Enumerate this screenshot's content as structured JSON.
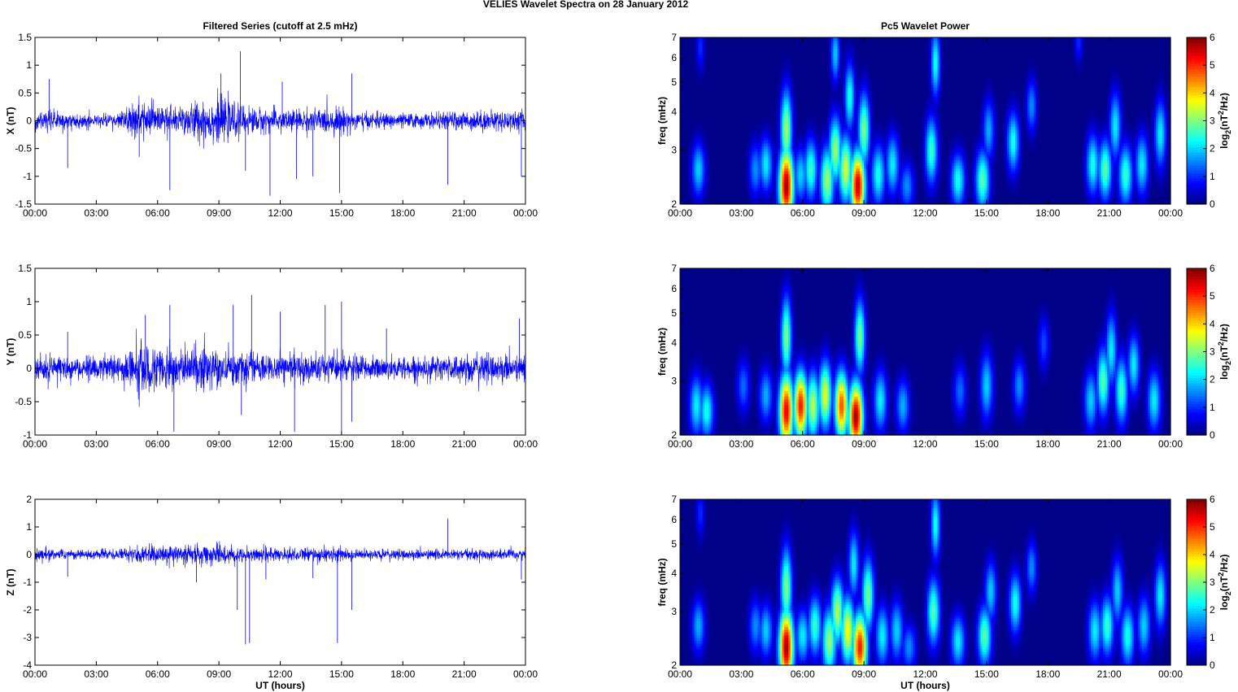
{
  "figure_title": "VELIES Wavelet Spectra on 28 January   2012",
  "colors": {
    "trace": "#0000ff",
    "axes": "#000000",
    "background": "#ffffff"
  },
  "chart_data": [
    {
      "type": "line",
      "title": "Filtered Series (cutoff at 2.5 mHz)",
      "xlabel": "",
      "ylabel": "X (nT)",
      "x_ticks": [
        "00:00",
        "03:00",
        "06:00",
        "09:00",
        "12:00",
        "15:00",
        "18:00",
        "21:00",
        "00:00"
      ],
      "x_range_hours": [
        0,
        24
      ],
      "ylim": [
        -1.5,
        1.5
      ],
      "y_ticks": [
        "-1.5",
        "-1",
        "-0.5",
        "0",
        "0.5",
        "1",
        "1.5"
      ],
      "series": [
        {
          "values_note": "",
          "noise_profile": [
            [
              0,
              0.1
            ],
            [
              1,
              0.09
            ],
            [
              2,
              0.07
            ],
            [
              4,
              0.07
            ],
            [
              5,
              0.18
            ],
            [
              6,
              0.17
            ],
            [
              7,
              0.14
            ],
            [
              8,
              0.2
            ],
            [
              9,
              0.22
            ],
            [
              10,
              0.15
            ],
            [
              11,
              0.12
            ],
            [
              13,
              0.11
            ],
            [
              15,
              0.13
            ],
            [
              16,
              0.08
            ],
            [
              19,
              0.07
            ],
            [
              21,
              0.09
            ],
            [
              22,
              0.1
            ],
            [
              24,
              0.1
            ]
          ],
          "spikes": [
            [
              0.7,
              0.75
            ],
            [
              1.6,
              -0.85
            ],
            [
              5.1,
              -0.65
            ],
            [
              6.6,
              -1.25
            ],
            [
              9.1,
              0.85
            ],
            [
              10.05,
              1.25
            ],
            [
              10.3,
              -0.9
            ],
            [
              11.5,
              -1.35
            ],
            [
              12.1,
              0.7
            ],
            [
              12.8,
              -1.05
            ],
            [
              13.6,
              -1.0
            ],
            [
              14.9,
              -1.3
            ],
            [
              15.5,
              0.85
            ],
            [
              20.2,
              -1.15
            ],
            [
              23.8,
              -1.0
            ]
          ]
        }
      ]
    },
    {
      "type": "line",
      "title": "",
      "xlabel": "",
      "ylabel": "Y (nT)",
      "x_ticks": [
        "00:00",
        "03:00",
        "06:00",
        "09:00",
        "12:00",
        "15:00",
        "18:00",
        "21:00",
        "00:00"
      ],
      "x_range_hours": [
        0,
        24
      ],
      "ylim": [
        -1,
        1.5
      ],
      "y_ticks": [
        "-1",
        "-0.5",
        "0",
        "0.5",
        "1",
        "1.5"
      ],
      "series": [
        {
          "values_note": "",
          "noise_profile": [
            [
              0,
              0.12
            ],
            [
              1,
              0.11
            ],
            [
              2,
              0.09
            ],
            [
              4,
              0.1
            ],
            [
              5,
              0.2
            ],
            [
              6,
              0.18
            ],
            [
              7,
              0.15
            ],
            [
              8,
              0.16
            ],
            [
              9,
              0.15
            ],
            [
              10,
              0.12
            ],
            [
              12,
              0.11
            ],
            [
              14,
              0.12
            ],
            [
              15,
              0.12
            ],
            [
              16,
              0.09
            ],
            [
              19,
              0.09
            ],
            [
              20,
              0.11
            ],
            [
              22,
              0.12
            ],
            [
              24,
              0.1
            ]
          ],
          "spikes": [
            [
              1.6,
              0.55
            ],
            [
              5.4,
              0.8
            ],
            [
              6.6,
              0.95
            ],
            [
              6.8,
              -0.95
            ],
            [
              9.7,
              0.95
            ],
            [
              10.1,
              -0.7
            ],
            [
              10.6,
              1.1
            ],
            [
              12.0,
              0.85
            ],
            [
              12.7,
              -0.95
            ],
            [
              14.2,
              0.95
            ],
            [
              15.0,
              1.0
            ],
            [
              15.0,
              -0.95
            ],
            [
              15.5,
              -0.8
            ],
            [
              17.2,
              0.6
            ],
            [
              23.7,
              0.75
            ]
          ]
        }
      ]
    },
    {
      "type": "line",
      "title": "",
      "xlabel": "UT (hours)",
      "ylabel": "Z (nT)",
      "x_ticks": [
        "00:00",
        "03:00",
        "06:00",
        "09:00",
        "12:00",
        "15:00",
        "18:00",
        "21:00",
        "00:00"
      ],
      "x_range_hours": [
        0,
        24
      ],
      "ylim": [
        -4,
        2
      ],
      "y_ticks": [
        "-4",
        "-3",
        "-2",
        "-1",
        "0",
        "1",
        "2"
      ],
      "series": [
        {
          "values_note": "",
          "noise_profile": [
            [
              0,
              0.12
            ],
            [
              2,
              0.1
            ],
            [
              4,
              0.1
            ],
            [
              5,
              0.18
            ],
            [
              6,
              0.16
            ],
            [
              7,
              0.17
            ],
            [
              9,
              0.2
            ],
            [
              10,
              0.16
            ],
            [
              11,
              0.15
            ],
            [
              13,
              0.14
            ],
            [
              15,
              0.15
            ],
            [
              16,
              0.1
            ],
            [
              20,
              0.1
            ],
            [
              22,
              0.11
            ],
            [
              24,
              0.11
            ]
          ],
          "spikes": [
            [
              1.6,
              -0.8
            ],
            [
              7.9,
              -1.0
            ],
            [
              9.9,
              -2.0
            ],
            [
              10.3,
              -3.25
            ],
            [
              10.5,
              -3.2
            ],
            [
              11.3,
              -0.9
            ],
            [
              13.6,
              -0.85
            ],
            [
              14.8,
              -3.2
            ],
            [
              15.5,
              -2.0
            ],
            [
              20.2,
              1.3
            ],
            [
              23.8,
              -0.9
            ]
          ]
        }
      ]
    },
    {
      "type": "heatmap",
      "title": "Pc5 Wavelet Power",
      "xlabel": "",
      "ylabel": "freq (mHz)",
      "x_ticks": [
        "00:00",
        "03:00",
        "06:00",
        "09:00",
        "12:00",
        "15:00",
        "18:00",
        "21:00",
        "00:00"
      ],
      "x_range_hours": [
        0,
        24
      ],
      "y_scale": "log",
      "ylim_mHz": [
        2,
        7
      ],
      "y_ticks": [
        "2",
        "3",
        "4",
        "5",
        "6",
        "7"
      ],
      "colorbar_label": "log2(nT^2/Hz)",
      "colorbar_ticks": [
        "0",
        "1",
        "2",
        "3",
        "4",
        "5",
        "6"
      ],
      "clim": [
        0,
        6
      ],
      "blobs": [
        [
          0.9,
          2.6,
          2.0,
          0.8
        ],
        [
          1.0,
          6.5,
          1.0,
          0.7
        ],
        [
          3.7,
          2.6,
          1.6,
          0.8
        ],
        [
          4.2,
          2.7,
          2.2,
          0.8
        ],
        [
          5.2,
          2.3,
          5.8,
          1.1
        ],
        [
          5.2,
          3.5,
          3.2,
          1.2
        ],
        [
          5.9,
          2.5,
          2.0,
          0.8
        ],
        [
          6.4,
          2.6,
          2.6,
          0.9
        ],
        [
          7.2,
          2.4,
          3.2,
          1.0
        ],
        [
          7.6,
          3.0,
          3.2,
          1.0
        ],
        [
          7.6,
          6.2,
          2.0,
          0.8
        ],
        [
          8.1,
          2.6,
          3.6,
          1.0
        ],
        [
          8.3,
          4.5,
          2.4,
          1.0
        ],
        [
          8.7,
          2.3,
          5.6,
          1.0
        ],
        [
          9.0,
          3.5,
          3.0,
          1.1
        ],
        [
          9.7,
          2.5,
          2.4,
          0.9
        ],
        [
          10.4,
          2.7,
          2.2,
          0.9
        ],
        [
          11.1,
          2.3,
          1.6,
          0.7
        ],
        [
          12.3,
          3.0,
          2.6,
          1.0
        ],
        [
          12.5,
          5.8,
          2.4,
          1.0
        ],
        [
          13.6,
          2.4,
          2.4,
          0.8
        ],
        [
          14.8,
          2.4,
          2.8,
          0.9
        ],
        [
          15.1,
          3.5,
          1.8,
          0.9
        ],
        [
          16.3,
          3.2,
          2.4,
          0.9
        ],
        [
          17.2,
          4.2,
          1.6,
          0.8
        ],
        [
          19.5,
          6.8,
          1.0,
          0.6
        ],
        [
          20.2,
          2.7,
          2.4,
          0.9
        ],
        [
          20.8,
          2.6,
          2.8,
          0.9
        ],
        [
          21.3,
          3.6,
          2.2,
          1.0
        ],
        [
          21.8,
          2.5,
          2.6,
          0.9
        ],
        [
          22.6,
          2.7,
          2.2,
          0.9
        ],
        [
          23.5,
          3.4,
          2.2,
          1.0
        ]
      ]
    },
    {
      "type": "heatmap",
      "title": "",
      "xlabel": "",
      "ylabel": "freq (mHz)",
      "x_ticks": [
        "00:00",
        "03:00",
        "06:00",
        "09:00",
        "12:00",
        "15:00",
        "18:00",
        "21:00",
        "00:00"
      ],
      "x_range_hours": [
        0,
        24
      ],
      "y_scale": "log",
      "ylim_mHz": [
        2,
        7
      ],
      "y_ticks": [
        "2",
        "3",
        "4",
        "5",
        "6",
        "7"
      ],
      "colorbar_label": "log2(nT^2/Hz)",
      "colorbar_ticks": [
        "0",
        "1",
        "2",
        "3",
        "4",
        "5",
        "6"
      ],
      "clim": [
        0,
        6
      ],
      "blobs": [
        [
          0.8,
          2.5,
          2.2,
          0.9
        ],
        [
          1.3,
          2.4,
          2.4,
          0.8
        ],
        [
          3.1,
          2.9,
          1.4,
          0.8
        ],
        [
          4.2,
          2.7,
          1.8,
          0.8
        ],
        [
          5.2,
          2.4,
          5.4,
          1.1
        ],
        [
          5.2,
          4.2,
          3.0,
          1.2
        ],
        [
          5.9,
          2.5,
          5.2,
          1.0
        ],
        [
          6.5,
          2.5,
          3.4,
          1.0
        ],
        [
          7.1,
          2.7,
          3.6,
          1.0
        ],
        [
          7.9,
          2.5,
          4.8,
          1.0
        ],
        [
          8.6,
          2.3,
          5.8,
          1.0
        ],
        [
          8.8,
          4.2,
          3.0,
          1.1
        ],
        [
          9.8,
          2.6,
          2.2,
          0.9
        ],
        [
          10.9,
          2.5,
          1.8,
          0.8
        ],
        [
          13.7,
          2.8,
          1.4,
          0.8
        ],
        [
          15.0,
          2.9,
          2.0,
          1.0
        ],
        [
          16.6,
          2.9,
          1.6,
          0.8
        ],
        [
          17.8,
          4.0,
          1.2,
          0.8
        ],
        [
          20.1,
          2.6,
          2.0,
          0.9
        ],
        [
          20.7,
          3.0,
          2.8,
          1.0
        ],
        [
          21.1,
          3.8,
          2.2,
          1.1
        ],
        [
          21.6,
          2.8,
          2.6,
          1.0
        ],
        [
          22.2,
          3.4,
          2.2,
          0.9
        ],
        [
          23.2,
          2.6,
          2.2,
          0.9
        ]
      ]
    },
    {
      "type": "heatmap",
      "title": "",
      "xlabel": "UT (hours)",
      "ylabel": "freq (mHz)",
      "x_ticks": [
        "00:00",
        "03:00",
        "06:00",
        "09:00",
        "12:00",
        "15:00",
        "18:00",
        "21:00",
        "00:00"
      ],
      "x_range_hours": [
        0,
        24
      ],
      "y_scale": "log",
      "ylim_mHz": [
        2,
        7
      ],
      "y_ticks": [
        "2",
        "3",
        "4",
        "5",
        "6",
        "7"
      ],
      "colorbar_label": "log2(nT^2/Hz)",
      "colorbar_ticks": [
        "0",
        "1",
        "2",
        "3",
        "4",
        "5",
        "6"
      ],
      "clim": [
        0,
        6
      ],
      "blobs": [
        [
          0.9,
          2.7,
          1.8,
          0.8
        ],
        [
          1.0,
          6.3,
          1.0,
          0.7
        ],
        [
          3.7,
          2.7,
          1.6,
          0.8
        ],
        [
          4.2,
          2.6,
          2.0,
          0.8
        ],
        [
          5.2,
          2.3,
          5.8,
          1.1
        ],
        [
          5.2,
          3.6,
          3.0,
          1.2
        ],
        [
          6.0,
          2.5,
          2.2,
          0.8
        ],
        [
          6.6,
          2.7,
          2.6,
          0.9
        ],
        [
          7.3,
          2.4,
          3.2,
          1.0
        ],
        [
          7.7,
          3.0,
          3.4,
          1.0
        ],
        [
          8.2,
          2.6,
          3.8,
          1.0
        ],
        [
          8.5,
          4.3,
          2.2,
          1.0
        ],
        [
          8.8,
          2.3,
          5.2,
          1.0
        ],
        [
          9.2,
          3.4,
          3.0,
          1.1
        ],
        [
          9.9,
          2.5,
          2.2,
          0.9
        ],
        [
          10.6,
          2.6,
          2.0,
          0.9
        ],
        [
          11.2,
          2.3,
          1.6,
          0.7
        ],
        [
          12.4,
          3.0,
          2.8,
          1.0
        ],
        [
          12.5,
          5.8,
          2.4,
          1.0
        ],
        [
          13.6,
          2.4,
          2.2,
          0.8
        ],
        [
          14.9,
          2.5,
          2.8,
          0.9
        ],
        [
          15.2,
          3.5,
          2.0,
          0.9
        ],
        [
          16.4,
          3.2,
          2.4,
          0.9
        ],
        [
          17.2,
          4.2,
          1.6,
          0.8
        ],
        [
          20.3,
          2.6,
          2.2,
          0.9
        ],
        [
          20.9,
          2.7,
          2.6,
          0.9
        ],
        [
          21.4,
          3.5,
          2.0,
          1.0
        ],
        [
          21.9,
          2.5,
          2.4,
          0.9
        ],
        [
          22.7,
          2.7,
          2.0,
          0.9
        ],
        [
          23.5,
          3.4,
          2.2,
          1.0
        ]
      ]
    }
  ]
}
